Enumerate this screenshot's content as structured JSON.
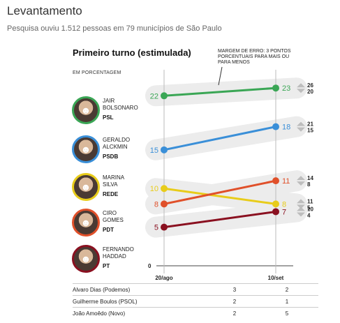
{
  "header": {
    "title": "Levantamento",
    "subtitle": "Pesquisa ouviu 1.512 pessoas em 79 municípios de São Paulo"
  },
  "chart": {
    "title": "Primeiro turno (estimulada)",
    "unit_note": "EM PORCENTAGEM",
    "margin_note": "MARGEM DE ERRO: 3 PONTOS PORCENTUAIS PARA MAIS OU PARA MENOS"
  },
  "candidates": [
    {
      "name_line1": "JAIR",
      "name_line2": "BOLSONARO",
      "party": "PSL",
      "color": "#3aa655",
      "icon": "person-photo-icon"
    },
    {
      "name_line1": "GERALDO",
      "name_line2": "ALCKMIN",
      "party": "PSDB",
      "color": "#3a8fd8",
      "icon": "person-photo-icon"
    },
    {
      "name_line1": "MARINA",
      "name_line2": "SILVA",
      "party": "REDE",
      "color": "#e8cc1a",
      "icon": "person-photo-icon"
    },
    {
      "name_line1": "CIRO",
      "name_line2": "GOMES",
      "party": "PDT",
      "color": "#e0502a",
      "icon": "person-photo-icon"
    },
    {
      "name_line1": "FERNANDO",
      "name_line2": "HADDAD",
      "party": "PT",
      "color": "#8a1020",
      "icon": "person-photo-icon"
    }
  ],
  "chart_data": {
    "type": "line",
    "categories": [
      "20/ago",
      "10/set"
    ],
    "ylim": [
      0,
      26
    ],
    "y_zero_label": "0",
    "grid": false,
    "series": [
      {
        "name": "JAIR BOLSONARO",
        "values": [
          22,
          23
        ],
        "range_high": 26,
        "range_low": 20,
        "color": "#3aa655"
      },
      {
        "name": "GERALDO ALCKMIN",
        "values": [
          15,
          18
        ],
        "range_high": 21,
        "range_low": 15,
        "color": "#3a8fd8"
      },
      {
        "name": "MARINA SILVA",
        "values": [
          10,
          8
        ],
        "range_high": 11,
        "range_low": 5,
        "color": "#e8cc1a"
      },
      {
        "name": "CIRO GOMES",
        "values": [
          8,
          11
        ],
        "range_high": 14,
        "range_low": 8,
        "color": "#e0502a"
      },
      {
        "name": "FERNANDO HADDAD",
        "values": [
          5,
          7
        ],
        "range_high": 10,
        "range_low": 4,
        "color": "#8a1020"
      }
    ]
  },
  "others": [
    {
      "name": "Alvaro Dias (Podemos)",
      "v1": "3",
      "v2": "2"
    },
    {
      "name": "Guilherme Boulos (PSOL)",
      "v1": "2",
      "v2": "1"
    },
    {
      "name": "João Amoêdo (Novo)",
      "v1": "2",
      "v2": "5"
    }
  ]
}
